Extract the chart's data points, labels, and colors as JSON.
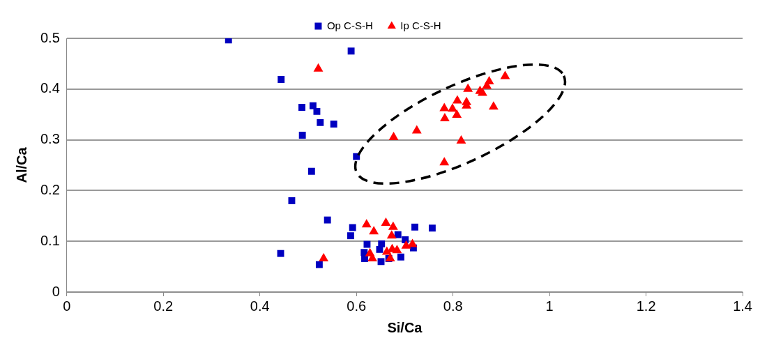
{
  "chart_data": {
    "type": "scatter",
    "xlabel": "Si/Ca",
    "ylabel": "Al/Ca",
    "xlim": [
      0,
      1.4
    ],
    "xticks": [
      0,
      0.2,
      0.4,
      0.6,
      0.8,
      1,
      1.2,
      1.4
    ],
    "ylim": [
      0,
      0.5
    ],
    "yticks": [
      0,
      0.1,
      0.2,
      0.3,
      0.4,
      0.5
    ],
    "grid": "y",
    "legend": "top",
    "series": [
      {
        "name": "Op C-S-H",
        "color": "#0000c0",
        "marker": "square",
        "x": [
          0.335,
          0.444,
          0.589,
          0.487,
          0.51,
          0.518,
          0.525,
          0.553,
          0.488,
          0.6,
          0.507,
          0.466,
          0.54,
          0.443,
          0.523,
          0.592,
          0.588,
          0.721,
          0.757,
          0.622,
          0.617,
          0.651,
          0.652,
          0.686,
          0.701,
          0.692,
          0.718,
          0.667,
          0.648,
          0.616
        ],
        "values": [
          0.497,
          0.419,
          0.475,
          0.364,
          0.367,
          0.356,
          0.334,
          0.331,
          0.309,
          0.267,
          0.238,
          0.18,
          0.142,
          0.076,
          0.054,
          0.127,
          0.111,
          0.128,
          0.126,
          0.094,
          0.066,
          0.06,
          0.095,
          0.113,
          0.103,
          0.069,
          0.087,
          0.066,
          0.084,
          0.078
        ]
      },
      {
        "name": "Ip C-S-H",
        "color": "#ff0000",
        "marker": "triangle",
        "x": [
          0.521,
          0.908,
          0.875,
          0.87,
          0.831,
          0.856,
          0.861,
          0.809,
          0.828,
          0.828,
          0.884,
          0.782,
          0.799,
          0.808,
          0.783,
          0.725,
          0.677,
          0.817,
          0.782,
          0.532,
          0.621,
          0.636,
          0.661,
          0.676,
          0.673,
          0.716,
          0.703,
          0.628,
          0.633,
          0.663,
          0.674,
          0.684,
          0.67
        ],
        "values": [
          0.44,
          0.425,
          0.415,
          0.406,
          0.4,
          0.396,
          0.392,
          0.377,
          0.374,
          0.367,
          0.365,
          0.362,
          0.361,
          0.349,
          0.342,
          0.318,
          0.305,
          0.298,
          0.255,
          0.066,
          0.133,
          0.119,
          0.136,
          0.128,
          0.111,
          0.094,
          0.091,
          0.076,
          0.066,
          0.079,
          0.084,
          0.082,
          0.066
        ]
      }
    ]
  }
}
